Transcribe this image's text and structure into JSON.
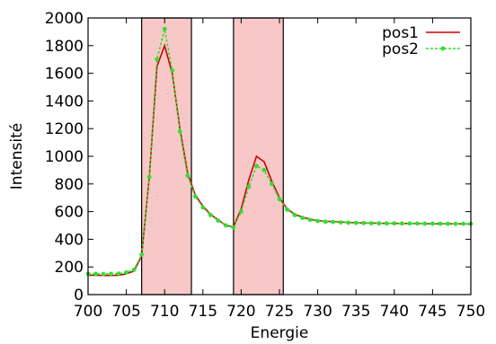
{
  "chart_data": {
    "type": "line",
    "title": "",
    "xlabel": "Energie",
    "ylabel": "Intensité",
    "xlim": [
      700,
      750
    ],
    "ylim": [
      0,
      2000
    ],
    "grid": false,
    "legend_position": "top-right",
    "x_ticks": [
      "700",
      "705",
      "710",
      "715",
      "720",
      "725",
      "730",
      "735",
      "740",
      "745",
      "750"
    ],
    "y_ticks": [
      "0",
      "200",
      "400",
      "600",
      "800",
      "1000",
      "1200",
      "1400",
      "1600",
      "1800",
      "2000"
    ],
    "highlight_regions": [
      {
        "x": [
          707,
          713.5
        ],
        "color": "#f8c8c8"
      },
      {
        "x": [
          719,
          725.5
        ],
        "color": "#f8c8c8"
      }
    ],
    "series": [
      {
        "name": "pos1",
        "color": "#cc0000",
        "style": "solid",
        "x": [
          700,
          701,
          702,
          703,
          704,
          705,
          706,
          707,
          708,
          709,
          710,
          711,
          712,
          713,
          714,
          715,
          716,
          717,
          718,
          719,
          720,
          721,
          722,
          723,
          724,
          725,
          726,
          727,
          728,
          729,
          730,
          731,
          732,
          733,
          734,
          735,
          736,
          737,
          738,
          739,
          740,
          741,
          742,
          743,
          744,
          745,
          746,
          747,
          748,
          749,
          750
        ],
        "y": [
          140,
          140,
          138,
          138,
          140,
          150,
          170,
          280,
          850,
          1650,
          1800,
          1600,
          1200,
          880,
          720,
          640,
          580,
          540,
          500,
          490,
          620,
          830,
          1000,
          960,
          820,
          700,
          620,
          580,
          560,
          545,
          535,
          530,
          528,
          525,
          522,
          520,
          518,
          517,
          516,
          515,
          515,
          514,
          514,
          513,
          513,
          512,
          512,
          512,
          512,
          511,
          510
        ]
      },
      {
        "name": "pos2",
        "color": "#33dd33",
        "style": "dotted",
        "x": [
          700,
          701,
          702,
          703,
          704,
          705,
          706,
          707,
          708,
          709,
          710,
          711,
          712,
          713,
          714,
          715,
          716,
          717,
          718,
          719,
          720,
          721,
          722,
          723,
          724,
          725,
          726,
          727,
          728,
          729,
          730,
          731,
          732,
          733,
          734,
          735,
          736,
          737,
          738,
          739,
          740,
          741,
          742,
          743,
          744,
          745,
          746,
          747,
          748,
          749,
          750
        ],
        "y": [
          150,
          150,
          148,
          150,
          152,
          160,
          180,
          290,
          850,
          1700,
          1920,
          1620,
          1180,
          860,
          710,
          630,
          575,
          535,
          500,
          485,
          600,
          780,
          930,
          900,
          800,
          690,
          615,
          575,
          555,
          540,
          532,
          527,
          525,
          522,
          520,
          518,
          517,
          516,
          515,
          515,
          515,
          514,
          514,
          514,
          513,
          513,
          513,
          512,
          512,
          512,
          512
        ]
      }
    ]
  }
}
